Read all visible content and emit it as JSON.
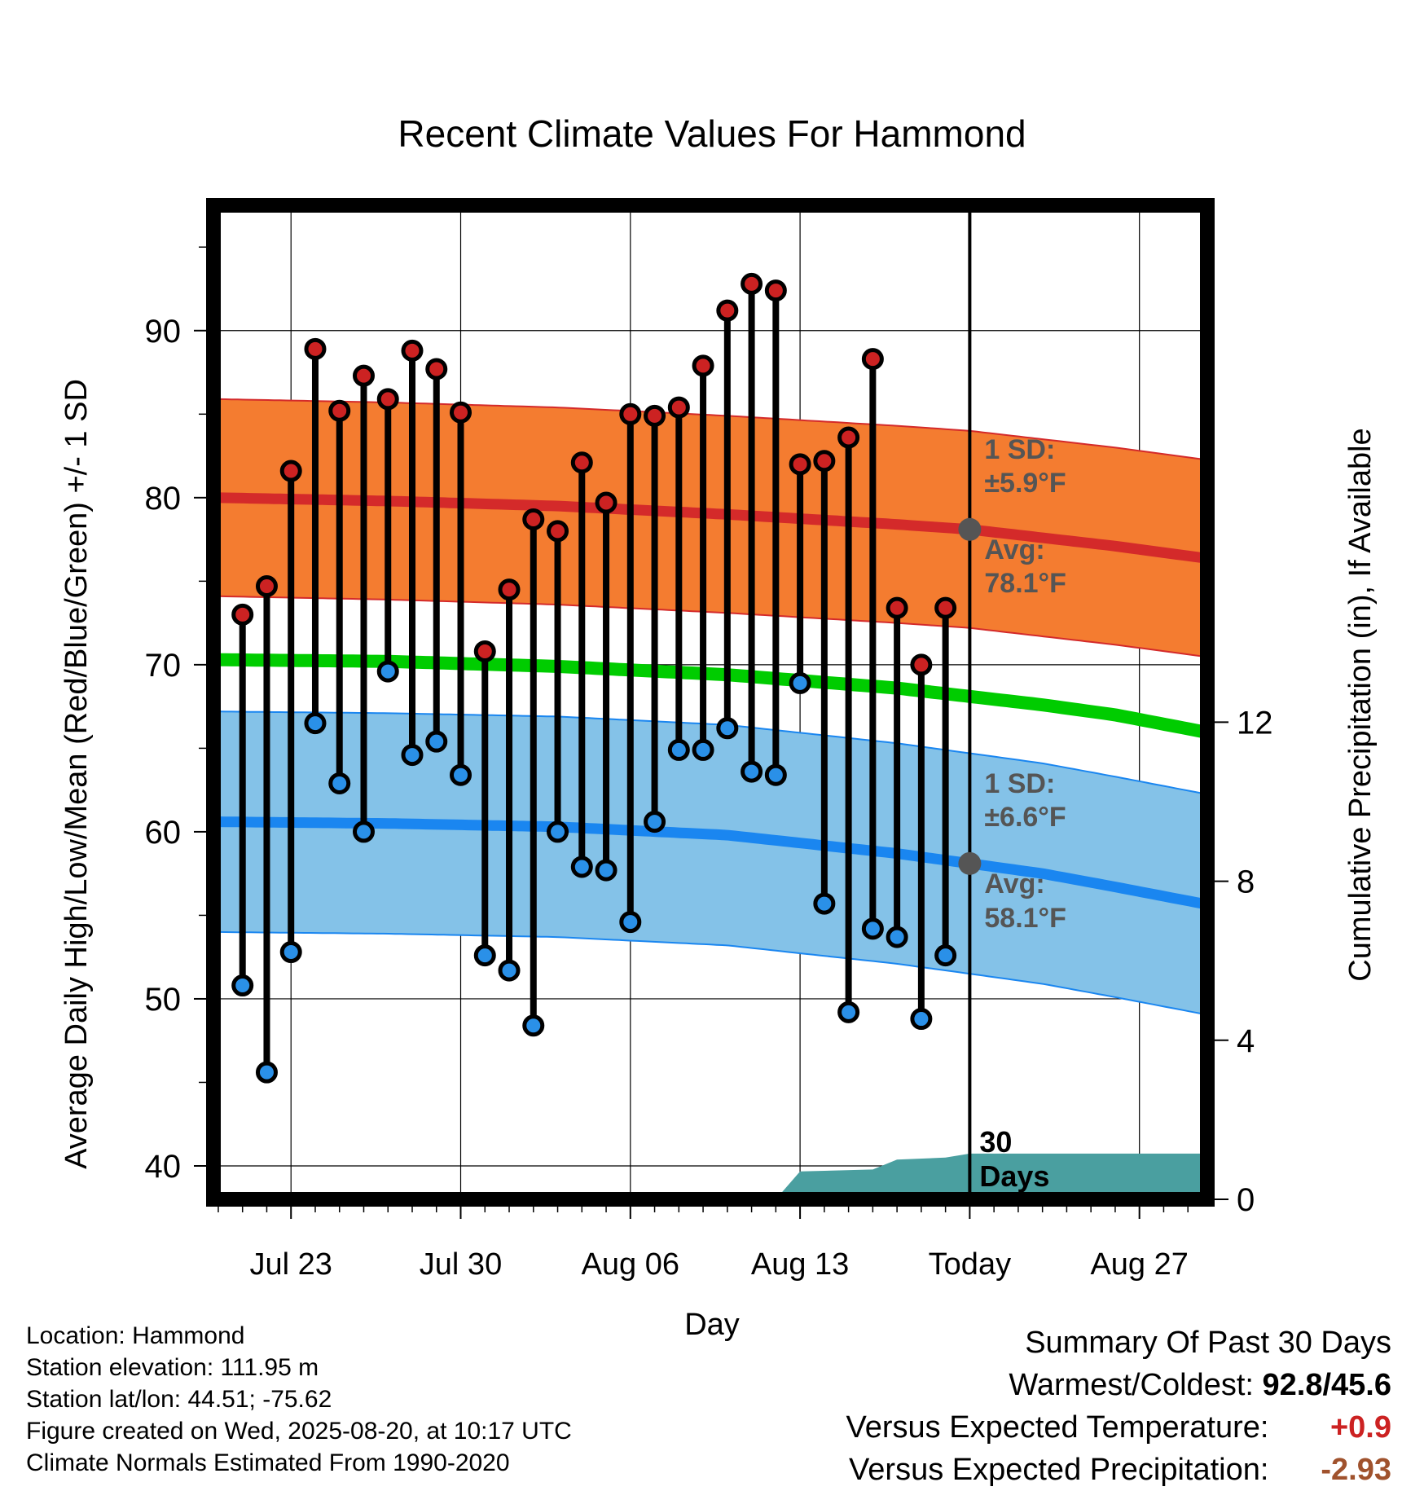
{
  "chart_data": {
    "type": "line",
    "title": "Recent Climate Values For Hammond",
    "xlabel": "Day",
    "ylabel_left": "Average Daily High/Low/Mean (Red/Blue/Green) +/- 1 SD",
    "ylabel_right": "Cumulative Precipitation (in), If Available",
    "x_tick_labels": [
      "Jul 23",
      "Jul 30",
      "Aug 06",
      "Aug 13",
      "Today",
      "Aug 27"
    ],
    "y_left_ticks": [
      "40",
      "50",
      "60",
      "70",
      "80",
      "90"
    ],
    "y_right_ticks": [
      "0",
      "4",
      "8",
      "12"
    ],
    "ylim_left": [
      38,
      97.5
    ],
    "ylim_right": [
      0,
      25
    ],
    "xlim_days": [
      -31.2,
      9.8
    ],
    "grid": true,
    "today_marker": {
      "day": 0,
      "label_line1": "30",
      "label_line2": "Days"
    },
    "observed": {
      "days": [
        -30,
        -29,
        -28,
        -27,
        -26,
        -25,
        -24,
        -23,
        -22,
        -21,
        -20,
        -19,
        -18,
        -17,
        -16,
        -15,
        -14,
        -13,
        -12,
        -11,
        -10,
        -9,
        -8,
        -7,
        -6,
        -5,
        -4,
        -3,
        -2,
        -1
      ],
      "highs": [
        73.0,
        74.7,
        81.6,
        88.9,
        85.2,
        87.3,
        85.9,
        88.8,
        87.7,
        85.1,
        70.8,
        74.5,
        78.7,
        78.0,
        82.1,
        79.7,
        85.0,
        84.9,
        85.4,
        87.9,
        91.2,
        92.8,
        92.4,
        82.0,
        82.2,
        83.6,
        88.3,
        73.4,
        70.0,
        73.4
      ],
      "lows": [
        50.8,
        45.6,
        52.8,
        66.5,
        62.9,
        60.0,
        69.6,
        64.6,
        65.4,
        63.4,
        52.6,
        51.7,
        48.4,
        60.0,
        57.9,
        57.7,
        54.6,
        60.6,
        64.9,
        64.9,
        66.2,
        63.6,
        63.4,
        68.9,
        55.7,
        49.2,
        54.2,
        53.7,
        48.8,
        52.6
      ]
    },
    "normals": {
      "days": [
        -31,
        -24,
        -17,
        -10,
        -3,
        0,
        3,
        6,
        9.6
      ],
      "avg_high": [
        80.0,
        79.8,
        79.5,
        79.0,
        78.4,
        78.1,
        77.6,
        77.1,
        76.4
      ],
      "avg_low": [
        60.6,
        60.5,
        60.3,
        59.8,
        58.7,
        58.1,
        57.5,
        56.7,
        55.7
      ],
      "avg_mean": [
        70.3,
        70.2,
        69.9,
        69.4,
        68.6,
        68.1,
        67.6,
        67.0,
        66.0
      ],
      "sd_high": 5.9,
      "sd_low": 6.6
    },
    "annotations": {
      "high_sd_line1": "1 SD:",
      "high_sd_line2": "±5.9°F",
      "high_avg_line1": "Avg:",
      "high_avg_line2": "78.1°F",
      "low_sd_line1": "1 SD:",
      "low_sd_line2": "±6.6°F",
      "low_avg_line1": "Avg:",
      "low_avg_line2": "58.1°F"
    },
    "precipitation": {
      "days": [
        -8,
        -7,
        -4,
        -3,
        -1,
        0,
        9.8
      ],
      "cumulative": [
        0,
        0.7,
        0.75,
        1.0,
        1.05,
        1.15,
        1.15
      ]
    },
    "colors": {
      "high_band": "#f47c30",
      "high_avg": "#d42a2a",
      "high_dot": "#cc2222",
      "low_band": "#84c2e8",
      "low_avg": "#1a86f0",
      "low_dot": "#2a90e8",
      "mean_line": "#00cc00",
      "precip": "#4a9fa0",
      "annotation_text": "#555555"
    }
  },
  "footer": {
    "location": "Location: Hammond",
    "elevation": "Station elevation: 111.95 m",
    "latlon": "Station lat/lon: 44.51; -75.62",
    "created": "Figure created on Wed, 2025-08-20, at 10:17 UTC",
    "normals": "Climate Normals Estimated From 1990-2020"
  },
  "summary": {
    "heading": "Summary Of Past 30 Days",
    "warmest_label": "Warmest/Coldest:",
    "warmest_value": "92.8/45.6",
    "temp_label": "Versus Expected Temperature:",
    "temp_value": "+0.9",
    "temp_color": "#cc2222",
    "precip_label": "Versus Expected Precipitation:",
    "precip_value": "-2.93",
    "precip_color": "#a0522d"
  }
}
